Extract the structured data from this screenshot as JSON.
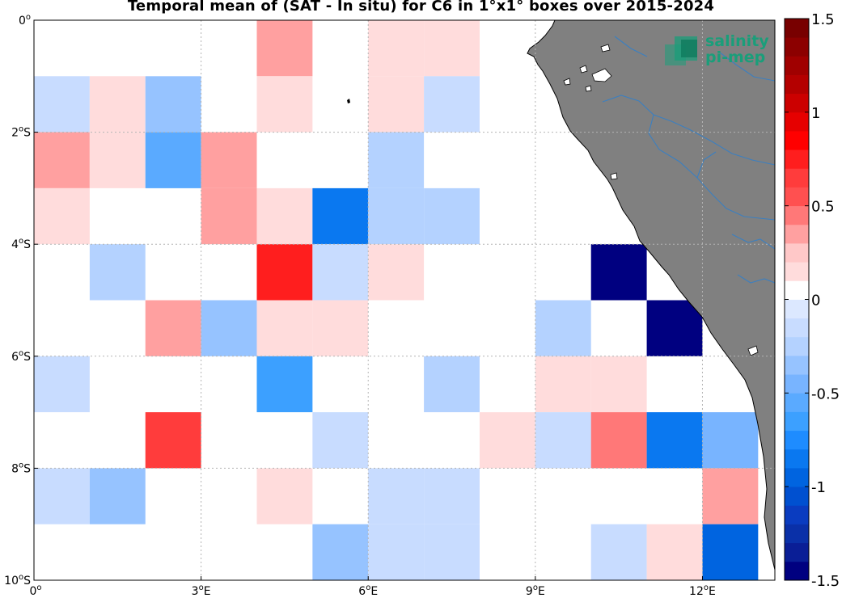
{
  "title": "Temporal mean of (SAT - In situ) for C6 in 1°x1° boxes over 2015-2024",
  "logo": {
    "line1": "salinity",
    "line2": "pi-mep",
    "color": "#1a9e7a"
  },
  "colors": {
    "land": "#808080",
    "river": "#3b7fc0",
    "grid": "#b4b4b4"
  },
  "colorbar": {
    "min": -1.5,
    "max": 1.5,
    "steps": 30,
    "tick_values": [
      1.5,
      1,
      0.5,
      0,
      -0.5,
      -1,
      -1.5
    ],
    "tick_labels": [
      "1.5",
      "1",
      "0.5",
      "0",
      "-0.5",
      "-1",
      "-1.5"
    ],
    "colors": [
      "#000080",
      "#0a1e96",
      "#0a30a8",
      "#0a3cc0",
      "#0050d0",
      "#0064e0",
      "#0a78f0",
      "#1e8cff",
      "#3ca0ff",
      "#5aaaff",
      "#78b4ff",
      "#96c3ff",
      "#b4d2ff",
      "#c8dcff",
      "#dce8ff",
      "#ffffff",
      "#ffdcdc",
      "#ffc8c8",
      "#ffa0a0",
      "#ff7878",
      "#ff5050",
      "#ff3c3c",
      "#ff1e1e",
      "#ff0000",
      "#e60000",
      "#cc0000",
      "#b40000",
      "#a00000",
      "#8c0000",
      "#780000"
    ]
  },
  "axes": {
    "x_ticks": [
      {
        "value": 0,
        "label": "0",
        "sup": "o",
        "suffix": ""
      },
      {
        "value": 3,
        "label": "3",
        "sup": "o",
        "suffix": "E"
      },
      {
        "value": 6,
        "label": "6",
        "sup": "o",
        "suffix": "E"
      },
      {
        "value": 9,
        "label": "9",
        "sup": "o",
        "suffix": "E"
      },
      {
        "value": 12,
        "label": "12",
        "sup": "o",
        "suffix": "E"
      }
    ],
    "y_ticks": [
      {
        "value": 0,
        "label": "0",
        "sup": "o",
        "suffix": ""
      },
      {
        "value": -2,
        "label": "2",
        "sup": "o",
        "suffix": "S"
      },
      {
        "value": -4,
        "label": "4",
        "sup": "o",
        "suffix": "S"
      },
      {
        "value": -6,
        "label": "6",
        "sup": "o",
        "suffix": "S"
      },
      {
        "value": -8,
        "label": "8",
        "sup": "o",
        "suffix": "S"
      },
      {
        "value": -10,
        "label": "10",
        "sup": "o",
        "suffix": "S"
      }
    ],
    "lon_range": [
      0,
      13.3
    ],
    "lat_range": [
      -10,
      0
    ]
  },
  "chart_data": {
    "type": "heatmap",
    "title": "Temporal mean of (SAT - In situ) for C6 in 1°x1° boxes over 2015-2024",
    "xlim": [
      0,
      13.3
    ],
    "ylim": [
      -10,
      0
    ],
    "grid": true,
    "boxes": [
      {
        "lon": 4,
        "lat": 0,
        "value": 0.3
      },
      {
        "lon": 6,
        "lat": 0,
        "value": 0.15
      },
      {
        "lon": 7,
        "lat": 0,
        "value": 0.15
      },
      {
        "lon": 0,
        "lat": -1,
        "value": -0.15
      },
      {
        "lon": 1,
        "lat": -1,
        "value": 0.15
      },
      {
        "lon": 2,
        "lat": -1,
        "value": -0.3
      },
      {
        "lon": 4,
        "lat": -1,
        "value": 0.15
      },
      {
        "lon": 6,
        "lat": -1,
        "value": 0.15
      },
      {
        "lon": 7,
        "lat": -1,
        "value": -0.15
      },
      {
        "lon": 0,
        "lat": -2,
        "value": 0.3
      },
      {
        "lon": 1,
        "lat": -2,
        "value": 0.15
      },
      {
        "lon": 2,
        "lat": -2,
        "value": -0.6
      },
      {
        "lon": 3,
        "lat": -2,
        "value": 0.3
      },
      {
        "lon": 6,
        "lat": -2,
        "value": -0.25
      },
      {
        "lon": 0,
        "lat": -3,
        "value": 0.15
      },
      {
        "lon": 3,
        "lat": -3,
        "value": 0.3
      },
      {
        "lon": 4,
        "lat": -3,
        "value": 0.15
      },
      {
        "lon": 5,
        "lat": -3,
        "value": -0.8
      },
      {
        "lon": 6,
        "lat": -3,
        "value": -0.25
      },
      {
        "lon": 7,
        "lat": -3,
        "value": -0.25
      },
      {
        "lon": 1,
        "lat": -4,
        "value": -0.25
      },
      {
        "lon": 4,
        "lat": -4,
        "value": 0.7
      },
      {
        "lon": 5,
        "lat": -4,
        "value": -0.15
      },
      {
        "lon": 6,
        "lat": -4,
        "value": 0.15
      },
      {
        "lon": 10,
        "lat": -4,
        "value": -1.5
      },
      {
        "lon": 2,
        "lat": -5,
        "value": 0.3
      },
      {
        "lon": 3,
        "lat": -5,
        "value": -0.4
      },
      {
        "lon": 4,
        "lat": -5,
        "value": 0.15
      },
      {
        "lon": 5,
        "lat": -5,
        "value": 0.15
      },
      {
        "lon": 9,
        "lat": -5,
        "value": -0.25
      },
      {
        "lon": 11,
        "lat": -5,
        "value": -1.5
      },
      {
        "lon": 0,
        "lat": -6,
        "value": -0.15
      },
      {
        "lon": 4,
        "lat": -6,
        "value": -0.7
      },
      {
        "lon": 7,
        "lat": -6,
        "value": -0.25
      },
      {
        "lon": 9,
        "lat": -6,
        "value": 0.15
      },
      {
        "lon": 10,
        "lat": -6,
        "value": 0.15
      },
      {
        "lon": 2,
        "lat": -7,
        "value": 0.6
      },
      {
        "lon": 5,
        "lat": -7,
        "value": -0.15
      },
      {
        "lon": 8,
        "lat": -7,
        "value": 0.15
      },
      {
        "lon": 9,
        "lat": -7,
        "value": -0.15
      },
      {
        "lon": 10,
        "lat": -7,
        "value": 0.45
      },
      {
        "lon": 11,
        "lat": -7,
        "value": -0.85
      },
      {
        "lon": 12,
        "lat": -7,
        "value": -0.5
      },
      {
        "lon": 0,
        "lat": -8,
        "value": -0.15
      },
      {
        "lon": 1,
        "lat": -8,
        "value": -0.35
      },
      {
        "lon": 4,
        "lat": -8,
        "value": 0.15
      },
      {
        "lon": 6,
        "lat": -8,
        "value": -0.15
      },
      {
        "lon": 7,
        "lat": -8,
        "value": -0.15
      },
      {
        "lon": 12,
        "lat": -8,
        "value": 0.3
      },
      {
        "lon": 5,
        "lat": -9,
        "value": -0.35
      },
      {
        "lon": 6,
        "lat": -9,
        "value": -0.15
      },
      {
        "lon": 7,
        "lat": -9,
        "value": -0.15
      },
      {
        "lon": 10,
        "lat": -9,
        "value": -0.15
      },
      {
        "lon": 11,
        "lat": -9,
        "value": 0.15
      },
      {
        "lon": 12,
        "lat": -9,
        "value": -1.0
      }
    ]
  }
}
